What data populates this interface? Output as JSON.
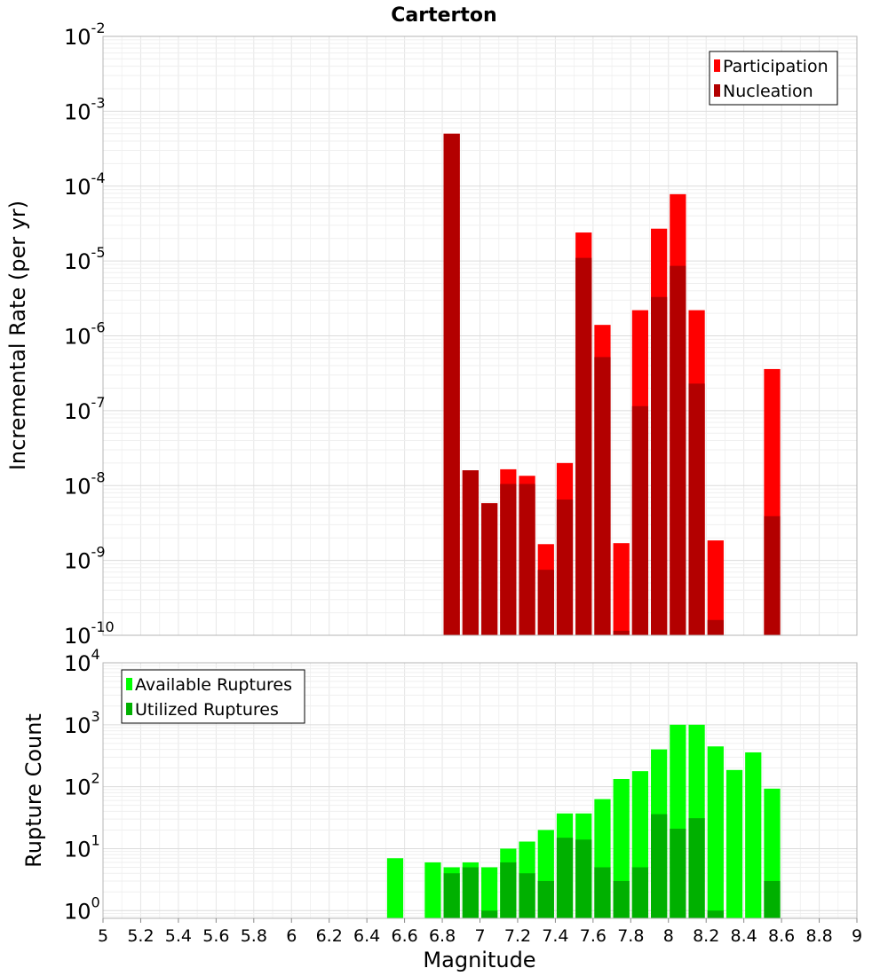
{
  "title": "Carterton",
  "chart_data": [
    {
      "type": "bar",
      "scale": "log",
      "ylabel": "Incremental Rate (per yr)",
      "ylim": [
        1e-10,
        0.01
      ],
      "y_decades": [
        {
          "base": "10",
          "exp": "-2"
        },
        {
          "base": "10",
          "exp": "-3"
        },
        {
          "base": "10",
          "exp": "-4"
        },
        {
          "base": "10",
          "exp": "-5"
        },
        {
          "base": "10",
          "exp": "-6"
        },
        {
          "base": "10",
          "exp": "-7"
        },
        {
          "base": "10",
          "exp": "-8"
        },
        {
          "base": "10",
          "exp": "-9"
        },
        {
          "base": "10",
          "exp": "-10"
        }
      ],
      "xlim": [
        5,
        9
      ],
      "legend_position": "top-right",
      "grid": true,
      "series": [
        {
          "name": "Participation",
          "color": "#ff0000",
          "x": [
            6.85,
            6.95,
            7.05,
            7.15,
            7.25,
            7.35,
            7.45,
            7.55,
            7.65,
            7.75,
            7.85,
            7.95,
            8.05,
            8.15,
            8.25,
            8.55
          ],
          "y": [
            0.0005,
            1.6e-08,
            5.8e-09,
            1.65e-08,
            1.35e-08,
            1.65e-09,
            2e-08,
            2.4e-05,
            1.4e-06,
            1.7e-09,
            2.2e-06,
            2.7e-05,
            7.8e-05,
            2.2e-06,
            1.85e-09,
            3.6e-07
          ]
        },
        {
          "name": "Nucleation",
          "color": "#b30000",
          "x": [
            6.85,
            6.95,
            7.05,
            7.15,
            7.25,
            7.35,
            7.45,
            7.55,
            7.65,
            7.75,
            7.85,
            7.95,
            8.05,
            8.15,
            8.25,
            8.55
          ],
          "y": [
            0.0005,
            1.6e-08,
            5.8e-09,
            1.05e-08,
            1.05e-08,
            7.5e-10,
            6.5e-09,
            1.1e-05,
            5.2e-07,
            1.15e-10,
            1.15e-07,
            3.3e-06,
            8.6e-06,
            2.3e-07,
            1.6e-10,
            3.9e-09
          ]
        }
      ]
    },
    {
      "type": "bar",
      "scale": "log",
      "ylabel": "Rupture Count",
      "xlabel": "Magnitude",
      "ylim": [
        0.75,
        10000
      ],
      "y_decades": [
        {
          "base": "10",
          "exp": "4"
        },
        {
          "base": "10",
          "exp": "3"
        },
        {
          "base": "10",
          "exp": "2"
        },
        {
          "base": "10",
          "exp": "1"
        },
        {
          "base": "10",
          "exp": "0"
        }
      ],
      "xlim": [
        5,
        9
      ],
      "x_ticks": [
        "5",
        "5.2",
        "5.4",
        "5.6",
        "5.8",
        "6",
        "6.2",
        "6.4",
        "6.6",
        "6.8",
        "7",
        "7.2",
        "7.4",
        "7.6",
        "7.8",
        "8",
        "8.2",
        "8.4",
        "8.6",
        "8.8",
        "9"
      ],
      "legend_position": "top-left",
      "grid": true,
      "series": [
        {
          "name": "Available Ruptures",
          "color": "#00ff00",
          "x": [
            6.55,
            6.75,
            6.85,
            6.95,
            7.05,
            7.15,
            7.25,
            7.35,
            7.45,
            7.55,
            7.65,
            7.75,
            7.85,
            7.95,
            8.05,
            8.15,
            8.25,
            8.35,
            8.45,
            8.55
          ],
          "y": [
            7,
            6,
            5,
            6,
            5,
            10,
            13,
            20,
            37,
            37,
            63,
            133,
            178,
            400,
            1000,
            1000,
            447,
            186,
            358,
            93
          ]
        },
        {
          "name": "Utilized Ruptures",
          "color": "#00b000",
          "x": [
            6.85,
            6.95,
            7.05,
            7.15,
            7.25,
            7.35,
            7.45,
            7.55,
            7.65,
            7.75,
            7.85,
            7.95,
            8.05,
            8.15,
            8.25,
            8.55
          ],
          "y": [
            4,
            5,
            1,
            6,
            4,
            3,
            15,
            14,
            5,
            3,
            5,
            36,
            21,
            31,
            1,
            3
          ]
        }
      ]
    }
  ]
}
